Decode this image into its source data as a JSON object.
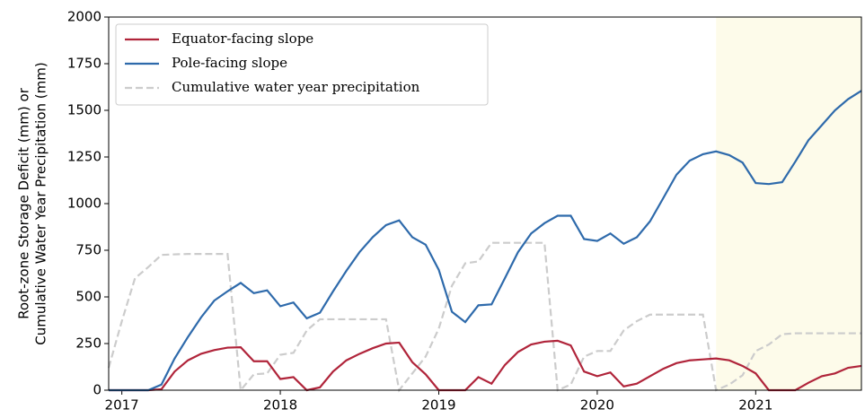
{
  "chart_data": {
    "type": "line",
    "ylabel": [
      "Root-zone Storage Deficit (mm) or",
      "Cumulative Water Year Precipitation (mm)"
    ],
    "x": [
      2016.917,
      2017.0,
      2017.083,
      2017.167,
      2017.25,
      2017.333,
      2017.417,
      2017.5,
      2017.583,
      2017.667,
      2017.75,
      2017.833,
      2017.917,
      2018.0,
      2018.083,
      2018.167,
      2018.25,
      2018.333,
      2018.417,
      2018.5,
      2018.583,
      2018.667,
      2018.75,
      2018.833,
      2018.917,
      2019.0,
      2019.083,
      2019.167,
      2019.25,
      2019.333,
      2019.417,
      2019.5,
      2019.583,
      2019.667,
      2019.75,
      2019.833,
      2019.917,
      2020.0,
      2020.083,
      2020.167,
      2020.25,
      2020.333,
      2020.417,
      2020.5,
      2020.583,
      2020.667,
      2020.75,
      2020.833,
      2020.917,
      2021.0,
      2021.083,
      2021.167,
      2021.25,
      2021.333,
      2021.417,
      2021.5,
      2021.583,
      2021.667
    ],
    "series": [
      {
        "name": "Equator-facing slope",
        "color": "#b0243a",
        "dashed": false,
        "values": [
          0,
          0,
          0,
          0,
          5,
          100,
          160,
          195,
          215,
          228,
          230,
          155,
          155,
          60,
          70,
          0,
          15,
          100,
          160,
          195,
          225,
          250,
          255,
          150,
          85,
          0,
          0,
          0,
          70,
          35,
          135,
          205,
          245,
          260,
          265,
          240,
          100,
          75,
          95,
          20,
          35,
          75,
          115,
          145,
          160,
          165,
          170,
          160,
          130,
          90,
          0,
          0,
          0,
          40,
          75,
          90,
          120,
          130
        ]
      },
      {
        "name": "Pole-facing slope",
        "color": "#2e6aab",
        "dashed": false,
        "values": [
          0,
          0,
          0,
          0,
          30,
          170,
          285,
          390,
          480,
          530,
          575,
          520,
          535,
          450,
          470,
          385,
          415,
          530,
          640,
          740,
          820,
          885,
          910,
          820,
          780,
          645,
          420,
          365,
          455,
          460,
          600,
          740,
          840,
          895,
          935,
          935,
          810,
          800,
          840,
          785,
          820,
          905,
          1030,
          1155,
          1230,
          1265,
          1280,
          1260,
          1220,
          1110,
          1105,
          1115,
          1225,
          1340,
          1420,
          1500,
          1560,
          1605
        ]
      },
      {
        "name": "Cumulative water year precipitation",
        "color": "#cccccc",
        "dashed": true,
        "values": [
          120,
          370,
          600,
          660,
          725,
          728,
          730,
          730,
          730,
          730,
          0,
          85,
          90,
          190,
          200,
          320,
          380,
          380,
          380,
          380,
          380,
          380,
          0,
          90,
          180,
          330,
          560,
          680,
          690,
          790,
          790,
          790,
          790,
          790,
          0,
          30,
          180,
          210,
          210,
          320,
          370,
          405,
          405,
          405,
          405,
          405,
          0,
          30,
          80,
          210,
          245,
          300,
          305,
          305,
          305,
          305,
          305,
          305
        ]
      }
    ],
    "xlim": [
      2016.917,
      2021.667
    ],
    "xticks": [
      2017,
      2018,
      2019,
      2020,
      2021
    ],
    "ylim": [
      0,
      2000
    ],
    "yticks": [
      0,
      250,
      500,
      750,
      1000,
      1250,
      1500,
      1750,
      2000
    ],
    "shaded_span": [
      2020.75,
      2021.667
    ],
    "shade_color": "#fdfbea",
    "legend": "upper left",
    "grid": false
  }
}
